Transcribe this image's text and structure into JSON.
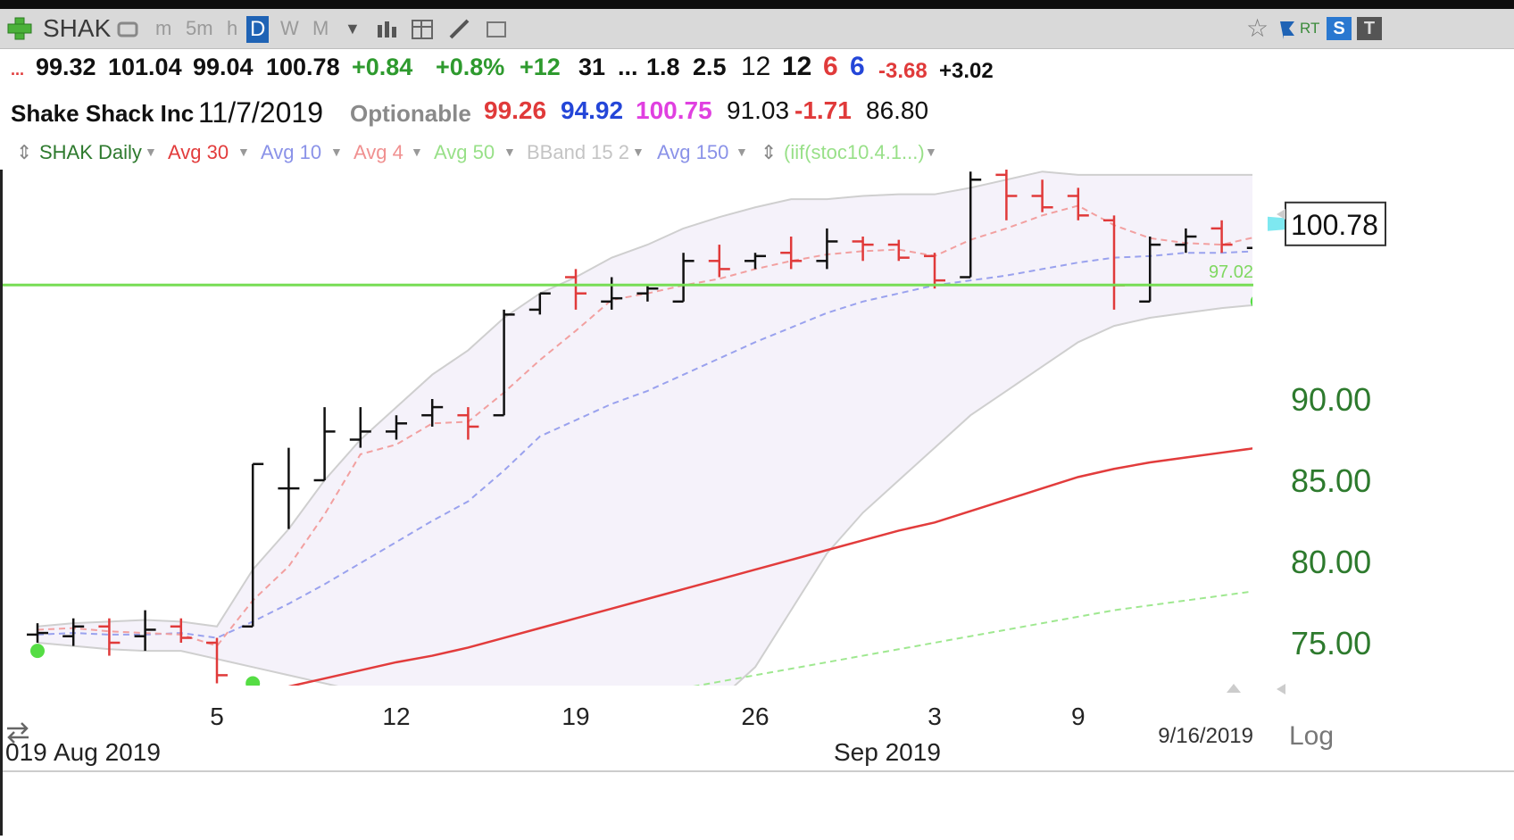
{
  "toolbar": {
    "add_icon": "plus-icon",
    "symbol": "SHAK",
    "timeframes": [
      "m",
      "5m",
      "h",
      "D",
      "W",
      "M"
    ],
    "active_timeframe": "D",
    "rt_label": "RT",
    "s_badge": "S",
    "t_badge": "T"
  },
  "quote": {
    "dots": "...",
    "open": "99.32",
    "high": "101.04",
    "low": "99.04",
    "close": "100.78",
    "change": "+0.84",
    "change_pct": "+0.8%",
    "v1": "+12",
    "v2": "31",
    "ellipsis": "...",
    "v3": "1.8",
    "v4": "2.5",
    "v5": "12",
    "v6": "12",
    "v7": "6",
    "v8": "6",
    "v9": "-3.68",
    "v10": "+3.02"
  },
  "info": {
    "company": "Shake Shack Inc",
    "date": "11/7/2019",
    "optionable": "Optionable",
    "s1": "99.26",
    "s2": "94.92",
    "s3": "100.75",
    "s4": "91.03",
    "s5": "-1.71",
    "s6": "86.80"
  },
  "legend": {
    "series": "SHAK Daily",
    "avg30": "Avg 30",
    "avg10": "Avg 10",
    "avg4": "Avg 4",
    "avg50": "Avg 50",
    "bband": "BBand 15 2",
    "avg150": "Avg 150",
    "formula": "(iif(stoc10.4.1...)"
  },
  "colors": {
    "up": "#111111",
    "down": "#e03a3a",
    "avg30": "#e23c3c",
    "avg10": "#9aa2ee",
    "avg4": "#f2a0a0",
    "avg50": "#9fe890",
    "bband": "#cfcfcf",
    "hline": "#77dd55",
    "axis_text": "#2d7a2d"
  },
  "chart_data": {
    "type": "bar",
    "subtype": "ohlc",
    "symbol": "SHAK",
    "x_tick_labels": [
      "5",
      "12",
      "19",
      "26",
      "3",
      "9"
    ],
    "month_labels": [
      "Aug 2019",
      "Sep 2019"
    ],
    "partial_left_label": "019",
    "date_label": "9/16/2019",
    "log_label": "Log",
    "y_ticks": [
      75,
      80,
      85,
      90
    ],
    "y_tick_labels": [
      "75.00",
      "80.00",
      "85.00",
      "90.00"
    ],
    "ylim": [
      69.0,
      102.0
    ],
    "last_price_label": "100.78",
    "last_price": 100.78,
    "hline_value": 97.02,
    "hline_label": "97.02",
    "dates": [
      "7/29",
      "7/30",
      "7/31",
      "8/1",
      "8/2",
      "8/5",
      "8/6",
      "8/7",
      "8/8",
      "8/9",
      "8/12",
      "8/13",
      "8/14",
      "8/15",
      "8/16",
      "8/19",
      "8/20",
      "8/21",
      "8/22",
      "8/23",
      "8/26",
      "8/27",
      "8/28",
      "8/29",
      "8/30",
      "9/3",
      "9/4",
      "9/5",
      "9/6",
      "9/9",
      "9/10",
      "9/11",
      "9/12",
      "9/13",
      "9/16"
    ],
    "ohlc": [
      [
        75.5,
        76.2,
        75.0,
        75.6
      ],
      [
        75.4,
        76.5,
        74.8,
        76.0
      ],
      [
        76.0,
        76.5,
        74.2,
        75.0
      ],
      [
        75.4,
        77.0,
        74.5,
        75.8
      ],
      [
        76.0,
        76.5,
        75.0,
        75.3
      ],
      [
        75.0,
        75.3,
        72.5,
        73.0
      ],
      [
        76.0,
        86.0,
        76.0,
        86.0
      ],
      [
        84.5,
        87.0,
        82.0,
        84.5
      ],
      [
        85.0,
        89.5,
        85.0,
        88.0
      ],
      [
        87.5,
        89.5,
        87.0,
        88.0
      ],
      [
        88.0,
        89.0,
        87.5,
        88.5
      ],
      [
        89.0,
        90.0,
        88.3,
        89.5
      ],
      [
        89.0,
        89.5,
        87.5,
        88.3
      ],
      [
        89.0,
        95.5,
        89.0,
        95.2
      ],
      [
        95.5,
        96.5,
        95.2,
        96.5
      ],
      [
        97.5,
        98.0,
        95.5,
        96.5
      ],
      [
        96.0,
        97.5,
        95.5,
        96.2
      ],
      [
        96.5,
        97.0,
        96.0,
        96.8
      ],
      [
        96.0,
        99.0,
        96.0,
        98.5
      ],
      [
        98.5,
        99.5,
        97.5,
        98.0
      ],
      [
        98.5,
        99.0,
        98.0,
        98.8
      ],
      [
        99.0,
        100.0,
        98.0,
        98.5
      ],
      [
        98.5,
        100.5,
        98.0,
        99.7
      ],
      [
        99.7,
        100.0,
        98.5,
        99.5
      ],
      [
        99.5,
        99.8,
        98.5,
        98.7
      ],
      [
        98.8,
        99.0,
        96.8,
        97.3
      ],
      [
        97.5,
        104.0,
        97.5,
        103.5
      ],
      [
        103.8,
        104.5,
        101.0,
        102.5
      ],
      [
        102.5,
        103.5,
        101.5,
        101.8
      ],
      [
        102.5,
        103.0,
        101.0,
        101.3
      ],
      [
        101.0,
        101.3,
        95.5,
        97.0
      ],
      [
        96.0,
        100.0,
        96.0,
        99.5
      ],
      [
        99.5,
        100.5,
        99.0,
        100.0
      ],
      [
        100.5,
        101.0,
        99.0,
        99.5
      ],
      [
        99.3,
        101.0,
        99.0,
        100.8
      ]
    ],
    "avg4": [
      75.8,
      75.9,
      75.7,
      75.6,
      75.5,
      74.8,
      77.6,
      79.7,
      82.9,
      86.6,
      87.2,
      88.5,
      88.6,
      90.4,
      92.4,
      94.2,
      96.1,
      96.5,
      97.0,
      97.4,
      98.0,
      98.5,
      98.9,
      99.1,
      99.2,
      98.8,
      99.8,
      100.5,
      101.3,
      101.9,
      100.7,
      99.9,
      99.6,
      99.5,
      100.0
    ],
    "avg10": [
      75.5,
      75.6,
      75.5,
      75.5,
      75.6,
      75.3,
      76.3,
      77.4,
      78.6,
      79.9,
      81.2,
      82.5,
      83.7,
      85.6,
      87.7,
      88.7,
      89.7,
      90.5,
      91.5,
      92.5,
      93.5,
      94.4,
      95.3,
      96.0,
      96.5,
      97.0,
      97.3,
      97.6,
      98.0,
      98.4,
      98.7,
      98.8,
      99.0,
      99.0,
      99.1
    ],
    "avg30": [
      70.5,
      70.7,
      70.9,
      71.1,
      71.3,
      71.4,
      71.9,
      72.3,
      72.8,
      73.3,
      73.8,
      74.2,
      74.7,
      75.3,
      75.9,
      76.5,
      77.1,
      77.7,
      78.3,
      78.9,
      79.5,
      80.1,
      80.7,
      81.3,
      81.9,
      82.4,
      83.1,
      83.8,
      84.5,
      85.2,
      85.7,
      86.1,
      86.4,
      86.7,
      87.0
    ],
    "avg50": [
      66.0,
      66.2,
      66.4,
      66.6,
      66.8,
      67.0,
      67.4,
      67.8,
      68.2,
      68.6,
      69.0,
      69.4,
      69.8,
      70.2,
      70.6,
      71.0,
      71.4,
      71.8,
      72.2,
      72.6,
      73.0,
      73.4,
      73.8,
      74.2,
      74.6,
      75.0,
      75.4,
      75.8,
      76.2,
      76.6,
      77.0,
      77.3,
      77.6,
      77.9,
      78.2
    ],
    "bband_upper": [
      76.0,
      76.2,
      76.3,
      76.4,
      76.3,
      76.0,
      79.5,
      82.0,
      85.0,
      87.5,
      89.5,
      91.5,
      93.0,
      95.0,
      96.5,
      97.5,
      98.7,
      99.5,
      100.5,
      101.2,
      101.8,
      102.3,
      102.3,
      102.5,
      102.6,
      102.6,
      103.0,
      103.5,
      104.0,
      103.8,
      103.8,
      103.8,
      103.8,
      103.8,
      103.8
    ],
    "bband_lower": [
      75.0,
      74.8,
      74.6,
      74.5,
      74.5,
      74.0,
      73.5,
      73.0,
      72.5,
      72.0,
      71.5,
      71.0,
      70.8,
      70.5,
      70.3,
      70.0,
      70.0,
      70.2,
      70.8,
      71.5,
      73.5,
      77.0,
      80.5,
      83.0,
      85.0,
      87.0,
      89.0,
      90.5,
      92.0,
      93.5,
      94.5,
      95.0,
      95.3,
      95.6,
      95.8
    ],
    "signal_dots": [
      {
        "date": "7/29",
        "value": 74.5
      },
      {
        "date": "8/6",
        "value": 72.5
      },
      {
        "date": "9/16",
        "value": 96.0
      }
    ]
  }
}
